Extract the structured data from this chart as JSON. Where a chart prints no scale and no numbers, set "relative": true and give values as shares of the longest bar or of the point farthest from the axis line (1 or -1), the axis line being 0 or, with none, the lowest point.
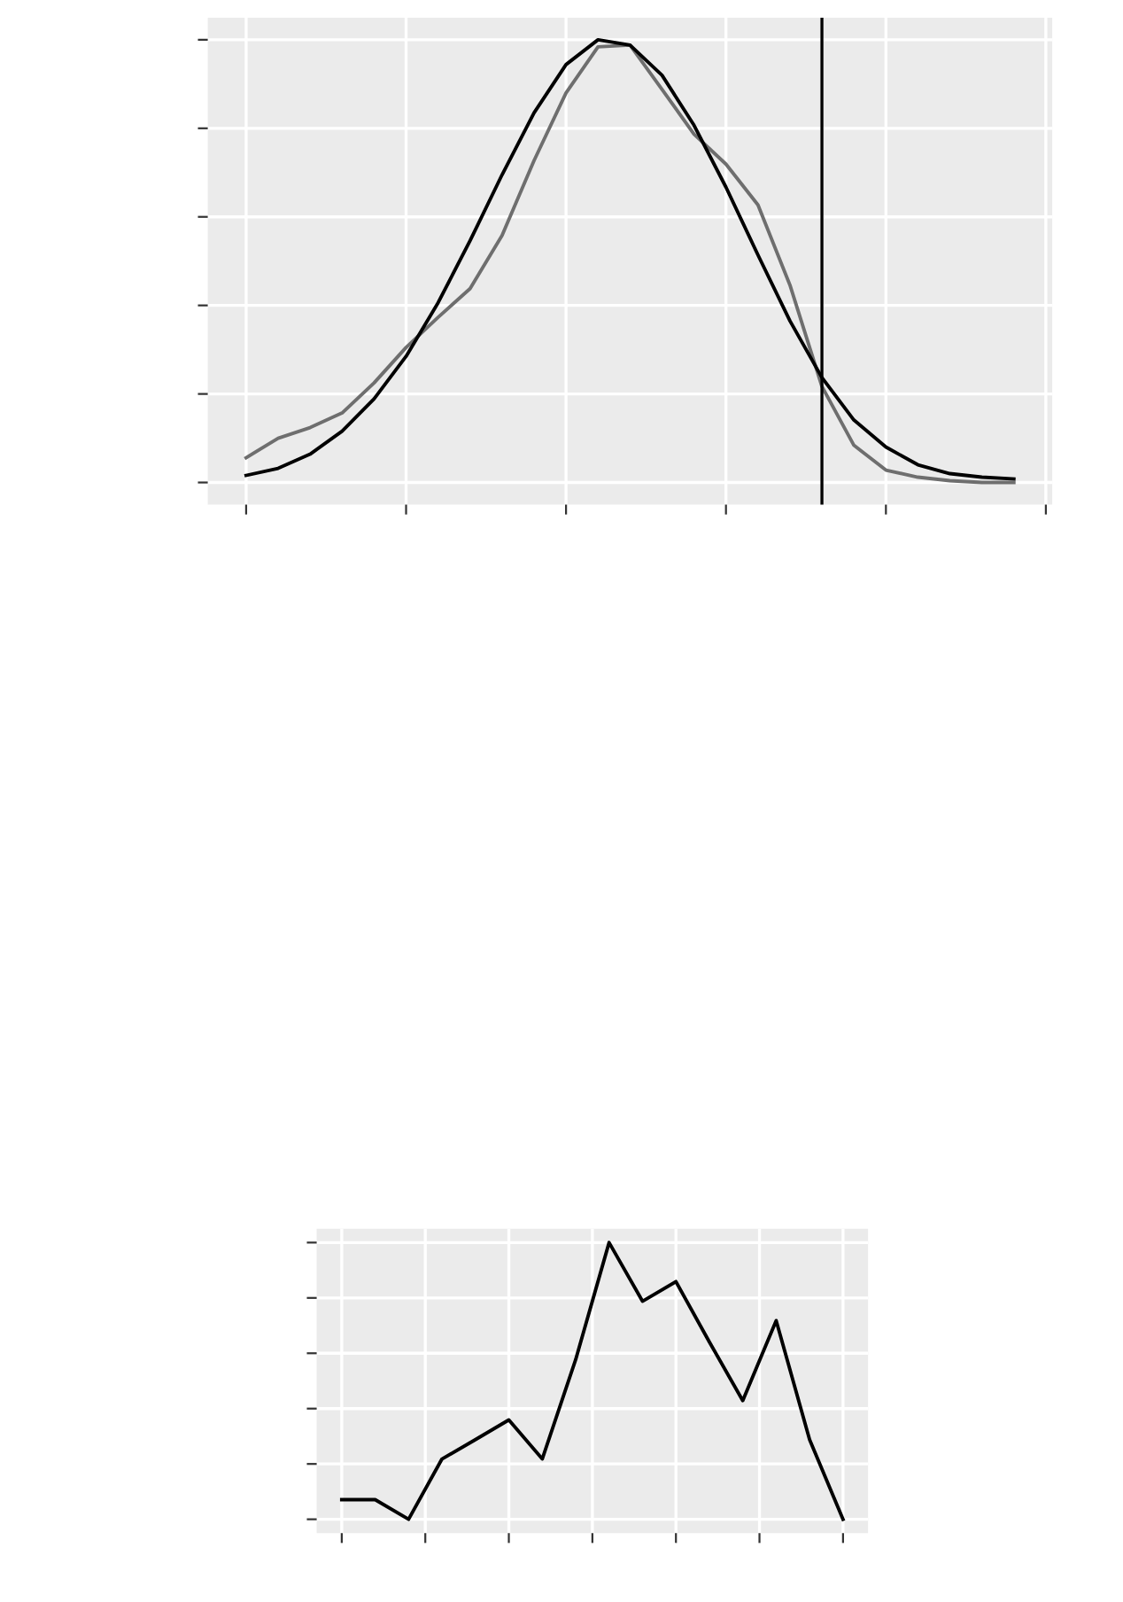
{
  "chart_data": [
    {
      "type": "line",
      "relative": true,
      "grid": true,
      "tick_labels": false,
      "categories": [
        null,
        null,
        null,
        null,
        null,
        null,
        null,
        null,
        null,
        null,
        null,
        null,
        null,
        null,
        null,
        null,
        null,
        null,
        null,
        null,
        null,
        null,
        null,
        null,
        null
      ],
      "series": [
        {
          "color": "#6e6e6e",
          "values": [
            0.056,
            0.1,
            0.124,
            0.157,
            0.225,
            0.305,
            0.373,
            0.438,
            0.558,
            0.727,
            0.88,
            0.984,
            0.988,
            0.888,
            0.787,
            0.719,
            0.627,
            0.446,
            0.217,
            0.084,
            0.028,
            0.012,
            0.004,
            0,
            0
          ]
        },
        {
          "color": "#000000",
          "values": [
            0.016,
            0.032,
            0.064,
            0.116,
            0.189,
            0.285,
            0.406,
            0.546,
            0.695,
            0.835,
            0.944,
            1,
            0.988,
            0.92,
            0.807,
            0.667,
            0.514,
            0.365,
            0.237,
            0.141,
            0.08,
            0.04,
            0.02,
            0.012,
            0.008
          ]
        }
      ]
    },
    {
      "type": "line",
      "relative": true,
      "grid": true,
      "tick_labels": false,
      "categories": [
        null,
        null,
        null,
        null,
        null,
        null,
        null,
        null,
        null,
        null,
        null,
        null,
        null,
        null,
        null,
        null
      ],
      "series": [
        {
          "color": "#000000",
          "values": [
            0.071,
            0.071,
            0,
            0.218,
            0.288,
            0.359,
            0.218,
            0.577,
            1,
            0.788,
            0.859,
            0.641,
            0.429,
            0.718,
            0.288,
            0
          ]
        }
      ]
    }
  ]
}
